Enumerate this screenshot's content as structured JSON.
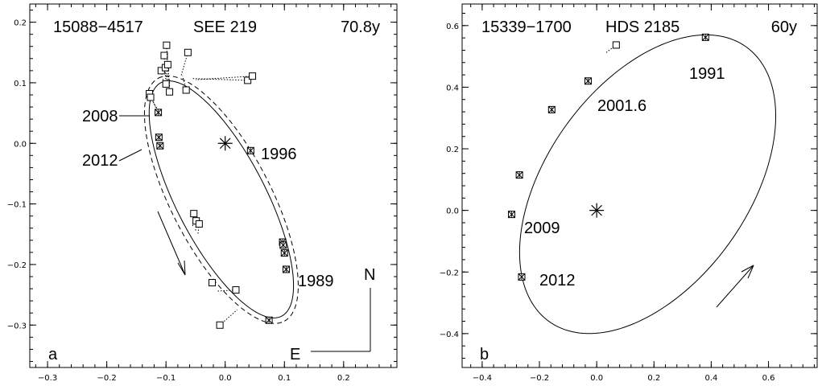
{
  "chart_data": [
    {
      "type": "scatter",
      "panel_letter": "a",
      "header": {
        "id": "15088−4517",
        "name": "SEE 219",
        "period": "70.8y"
      },
      "xlim": [
        -0.33,
        0.29
      ],
      "ylim": [
        -0.37,
        0.23
      ],
      "x_ticks": [
        -0.3,
        -0.2,
        -0.1,
        0.0,
        0.1,
        0.2
      ],
      "x_tick_labels": [
        "−0.3",
        "−0.2",
        "−0.1",
        "0.0",
        "0.1",
        "0.2"
      ],
      "y_ticks": [
        -0.3,
        -0.2,
        -0.1,
        0.0,
        0.1,
        0.2
      ],
      "y_tick_labels": [
        "−0.3",
        "−0.2",
        "−0.1",
        "0.0",
        "0.1",
        "0.2"
      ],
      "orbit_solid": {
        "cx": -0.0065,
        "cy": -0.0925,
        "a": 0.218,
        "b": 0.075,
        "angle_deg": -62.0
      },
      "orbit_dashed": {
        "cx": -0.0065,
        "cy": -0.093,
        "a": 0.227,
        "b": 0.084,
        "angle_deg": -62.0
      },
      "open_points": [
        {
          "x": -0.128,
          "y": 0.082,
          "fx": -0.113,
          "fy": 0.05
        },
        {
          "x": -0.126,
          "y": 0.076,
          "fx": -0.112,
          "fy": 0.052
        },
        {
          "x": -0.108,
          "y": 0.12,
          "fx": -0.103,
          "fy": 0.095
        },
        {
          "x": -0.103,
          "y": 0.145,
          "fx": -0.1,
          "fy": 0.1
        },
        {
          "x": -0.099,
          "y": 0.162,
          "fx": -0.096,
          "fy": 0.104
        },
        {
          "x": -0.101,
          "y": 0.125,
          "fx": -0.098,
          "fy": 0.102
        },
        {
          "x": -0.097,
          "y": 0.13,
          "fx": -0.095,
          "fy": 0.105
        },
        {
          "x": -0.1,
          "y": 0.098,
          "fx": -0.099,
          "fy": 0.1
        },
        {
          "x": -0.094,
          "y": 0.085,
          "fx": -0.094,
          "fy": 0.105
        },
        {
          "x": -0.063,
          "y": 0.15,
          "fx": -0.075,
          "fy": 0.11
        },
        {
          "x": -0.066,
          "y": 0.088,
          "fx": -0.072,
          "fy": 0.111
        },
        {
          "x": 0.038,
          "y": 0.104,
          "fx": -0.055,
          "fy": 0.107
        },
        {
          "x": 0.046,
          "y": 0.111,
          "fx": -0.05,
          "fy": 0.105
        },
        {
          "x": -0.053,
          "y": -0.116,
          "fx": -0.055,
          "fy": -0.138
        },
        {
          "x": -0.049,
          "y": -0.128,
          "fx": -0.05,
          "fy": -0.145
        },
        {
          "x": -0.044,
          "y": -0.133,
          "fx": -0.046,
          "fy": -0.15
        },
        {
          "x": -0.022,
          "y": -0.23,
          "fx": -0.022,
          "fy": -0.236
        },
        {
          "x": 0.018,
          "y": -0.242,
          "fx": -0.015,
          "fy": -0.244
        },
        {
          "x": -0.009,
          "y": -0.3,
          "fx": 0.02,
          "fy": -0.275
        }
      ],
      "crossed_points": [
        {
          "x": -0.113,
          "y": 0.051
        },
        {
          "x": -0.112,
          "y": 0.01
        },
        {
          "x": -0.11,
          "y": -0.004
        },
        {
          "x": 0.043,
          "y": -0.012
        },
        {
          "x": 0.097,
          "y": -0.163
        },
        {
          "x": 0.098,
          "y": -0.168
        },
        {
          "x": 0.1,
          "y": -0.181
        },
        {
          "x": 0.103,
          "y": -0.208
        },
        {
          "x": 0.074,
          "y": -0.292
        }
      ],
      "year_labels": [
        "2008",
        "2012",
        "1996",
        "1989"
      ],
      "north_label": "N",
      "east_label": "E"
    },
    {
      "type": "scatter",
      "panel_letter": "b",
      "header": {
        "id": "15339−1700",
        "name": "HDS 2185",
        "period": "60y"
      },
      "xlim": [
        -0.47,
        0.77
      ],
      "ylim": [
        -0.51,
        0.67
      ],
      "x_ticks": [
        -0.4,
        -0.2,
        0.0,
        0.2,
        0.4,
        0.6
      ],
      "x_tick_labels": [
        "−0.4",
        "−0.2",
        "0.0",
        "0.2",
        "0.4",
        "0.6"
      ],
      "y_ticks": [
        -0.4,
        -0.2,
        0.0,
        0.2,
        0.4,
        0.6
      ],
      "y_tick_labels": [
        "−0.4",
        "−0.2",
        "0.0",
        "0.2",
        "0.4",
        "0.6"
      ],
      "orbit_solid": {
        "cx": 0.178,
        "cy": 0.085,
        "a": 0.564,
        "b": 0.342,
        "angle_deg": 50.0
      },
      "open_points": [
        {
          "x": 0.068,
          "y": 0.537,
          "fx": 0.03,
          "fy": 0.51
        }
      ],
      "crossed_points": [
        {
          "x": 0.38,
          "y": 0.562
        },
        {
          "x": -0.03,
          "y": 0.42
        },
        {
          "x": -0.157,
          "y": 0.327
        },
        {
          "x": -0.27,
          "y": 0.115
        },
        {
          "x": -0.297,
          "y": -0.013
        },
        {
          "x": -0.262,
          "y": -0.216
        }
      ],
      "year_labels": [
        "1991",
        "2001.6",
        "2009",
        "2012"
      ]
    }
  ]
}
